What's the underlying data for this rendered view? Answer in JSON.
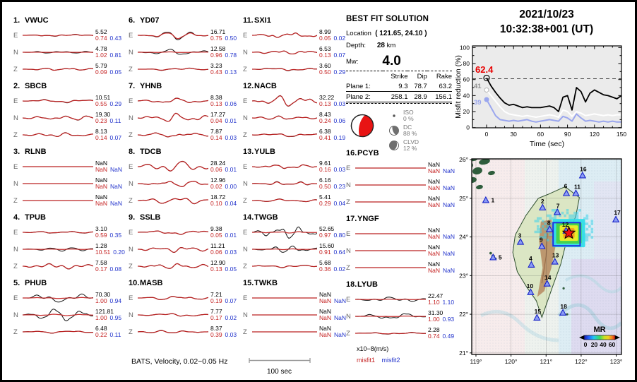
{
  "header": {
    "date": "2021/10/23",
    "time": "10:32:38+001  (UT)"
  },
  "best_fit": {
    "title": "BEST FIT SOLUTION",
    "location_label": "Location",
    "location_value": "( 121.65,  24.10 )",
    "depth_label": "Depth:",
    "depth_value": "28",
    "depth_unit": "km",
    "mw_label": "Mw:",
    "mw_value": "4.0",
    "table": {
      "col1": "Strike",
      "col2": "Dip",
      "col3": "Rake",
      "rows": [
        {
          "label": "Plane 1:",
          "strike": "9.3",
          "dip": "78.7",
          "rake": "63.2"
        },
        {
          "label": "Plane 2:",
          "strike": "258.1",
          "dip": "28.9",
          "rake": "156.1"
        }
      ]
    },
    "decomposition": [
      {
        "name": "ISO",
        "pct": "0 %"
      },
      {
        "name": "DC",
        "pct": "88 %"
      },
      {
        "name": "CLVD",
        "pct": "12 %"
      }
    ]
  },
  "footer": {
    "caption": "BATS, Velocity, 0.02−0.05 Hz",
    "scale_label": "100 sec",
    "units_label": "x10−8(m/s)",
    "misfit1_label": "misfit1",
    "misfit2_label": "misfit2"
  },
  "stations": [
    {
      "num": "1.",
      "name": "VWUC",
      "comps": [
        [
          "E",
          "5.52",
          "0.74",
          "0.43",
          0.15
        ],
        [
          "N",
          "4.78",
          "1.02",
          "0.81",
          0.18
        ],
        [
          "Z",
          "5.79",
          "0.09",
          "0.05",
          0.22
        ]
      ]
    },
    {
      "num": "2.",
      "name": "SBCB",
      "comps": [
        [
          "E",
          "10.51",
          "0.55",
          "0.29",
          0.3
        ],
        [
          "N",
          "19.30",
          "0.23",
          "0.11",
          0.5
        ],
        [
          "Z",
          "8.13",
          "0.14",
          "0.07",
          0.32
        ]
      ]
    },
    {
      "num": "3.",
      "name": "RLNB",
      "comps": [
        [
          "E",
          "NaN",
          "NaN",
          "NaN",
          0
        ],
        [
          "N",
          "NaN",
          "NaN",
          "NaN",
          0
        ],
        [
          "Z",
          "NaN",
          "NaN",
          "NaN",
          0
        ]
      ]
    },
    {
      "num": "4.",
      "name": "TPUB",
      "comps": [
        [
          "E",
          "3.10",
          "0.59",
          "0.35",
          0.2
        ],
        [
          "N",
          "1.28",
          "10.51",
          "0.20",
          0.3
        ],
        [
          "Z",
          "7.58",
          "0.17",
          "0.08",
          0.38
        ]
      ]
    },
    {
      "num": "5.",
      "name": "PHUB",
      "comps": [
        [
          "E",
          "70.30",
          "1.00",
          "0.94",
          0.75
        ],
        [
          "N",
          "121.81",
          "1.00",
          "0.95",
          0.95
        ],
        [
          "Z",
          "6.48",
          "0.22",
          "0.11",
          0.22
        ]
      ]
    },
    {
      "num": "6.",
      "name": "YD07",
      "comps": [
        [
          "E",
          "16.71",
          "0.75",
          "0.50",
          0.6
        ],
        [
          "N",
          "12.58",
          "0.96",
          "0.78",
          0.5
        ],
        [
          "Z",
          "3.23",
          "0.43",
          "0.13",
          0.18
        ]
      ]
    },
    {
      "num": "7.",
      "name": "YHNB",
      "comps": [
        [
          "E",
          "8.38",
          "0.13",
          "0.06",
          0.45
        ],
        [
          "N",
          "17.27",
          "0.04",
          "0.01",
          0.7
        ],
        [
          "Z",
          "7.87",
          "0.14",
          "0.03",
          0.4
        ]
      ]
    },
    {
      "num": "8.",
      "name": "TDCB",
      "comps": [
        [
          "E",
          "28.24",
          "0.06",
          "0.01",
          0.85
        ],
        [
          "N",
          "12.96",
          "0.02",
          "0.00",
          0.45
        ],
        [
          "Z",
          "18.72",
          "0.10",
          "0.04",
          0.6
        ]
      ]
    },
    {
      "num": "9.",
      "name": "SSLB",
      "comps": [
        [
          "E",
          "9.38",
          "0.05",
          "0.01",
          0.35
        ],
        [
          "N",
          "11.21",
          "0.06",
          "0.03",
          0.4
        ],
        [
          "Z",
          "12.90",
          "0.13",
          "0.05",
          0.45
        ]
      ]
    },
    {
      "num": "10.",
      "name": "MASB",
      "comps": [
        [
          "E",
          "7.21",
          "0.19",
          "0.07",
          0.3
        ],
        [
          "N",
          "7.77",
          "0.17",
          "0.02",
          0.25
        ],
        [
          "Z",
          "8.37",
          "0.39",
          "0.03",
          0.3
        ]
      ]
    },
    {
      "num": "11.",
      "name": "SXI1",
      "comps": [
        [
          "E",
          "8.99",
          "0.05",
          "0.02",
          0.4
        ],
        [
          "N",
          "6.53",
          "0.13",
          "0.07",
          0.3
        ],
        [
          "Z",
          "3.60",
          "0.50",
          "0.29",
          0.25
        ]
      ]
    },
    {
      "num": "12.",
      "name": "NACB",
      "comps": [
        [
          "E",
          "32.22",
          "0.13",
          "0.03",
          0.9
        ],
        [
          "N",
          "8.43",
          "0.24",
          "0.06",
          0.35
        ],
        [
          "Z",
          "6.38",
          "0.41",
          "0.19",
          0.3
        ]
      ]
    },
    {
      "num": "13.",
      "name": "YULB",
      "comps": [
        [
          "E",
          "9.61",
          "0.16",
          "0.03",
          0.35
        ],
        [
          "N",
          "6.16",
          "0.50",
          "0.23",
          0.3
        ],
        [
          "Z",
          "5.41",
          "0.29",
          "0.04",
          0.25
        ]
      ]
    },
    {
      "num": "14.",
      "name": "TWGB",
      "comps": [
        [
          "E",
          "52.65",
          "0.97",
          "0.80",
          1.0
        ],
        [
          "N",
          "15.60",
          "0.91",
          "0.64",
          0.55
        ],
        [
          "Z",
          "5.68",
          "0.36",
          "0.02",
          0.2
        ]
      ]
    },
    {
      "num": "15.",
      "name": "TWKB",
      "comps": [
        [
          "E",
          "NaN",
          "NaN",
          "NaN",
          0
        ],
        [
          "N",
          "NaN",
          "NaN",
          "NaN",
          0
        ],
        [
          "Z",
          "NaN",
          "NaN",
          "NaN",
          0
        ]
      ]
    },
    {
      "num": "16.",
      "name": "PCYB",
      "comps": [
        [
          "E",
          "NaN",
          "NaN",
          "NaN",
          0
        ],
        [
          "N",
          "NaN",
          "NaN",
          "NaN",
          0
        ],
        [
          "Z",
          "NaN",
          "NaN",
          "NaN",
          0
        ]
      ]
    },
    {
      "num": "17.",
      "name": "YNGF",
      "comps": [
        [
          "E",
          "NaN",
          "NaN",
          "NaN",
          0
        ],
        [
          "N",
          "NaN",
          "NaN",
          "NaN",
          0
        ],
        [
          "Z",
          "NaN",
          "NaN",
          "NaN",
          0
        ]
      ]
    },
    {
      "num": "18.",
      "name": "LYUB",
      "comps": [
        [
          "E",
          "22.47",
          "1.10",
          "1.10",
          0.35
        ],
        [
          "N",
          "31.30",
          "1.00",
          "0.93",
          0.5
        ],
        [
          "Z",
          "2.28",
          "0.74",
          "0.49",
          0.15
        ]
      ]
    }
  ],
  "chart_data": [
    {
      "type": "line",
      "title": "Misfit reduction vs time",
      "xlabel": "Time (sec)",
      "ylabel": "Misfit reduction (%)",
      "xlim": [
        -16,
        150
      ],
      "ylim": [
        0,
        102
      ],
      "xticks": [
        0,
        30,
        60,
        90,
        120,
        150
      ],
      "yticks": [
        0,
        20,
        40,
        60,
        80,
        100
      ],
      "x": [
        0,
        5,
        10,
        15,
        20,
        25,
        30,
        35,
        40,
        45,
        50,
        55,
        60,
        65,
        70,
        75,
        80,
        85,
        90,
        95,
        100,
        105,
        110,
        115,
        120,
        125,
        130,
        135,
        140,
        145,
        150
      ],
      "series": [
        {
          "name": "total-misfit-reduction",
          "color": "#000000",
          "values": [
            62,
            52,
            44,
            37,
            31,
            28,
            29,
            27,
            25,
            26,
            25,
            25,
            25,
            26,
            27,
            25,
            20,
            38,
            40,
            22,
            50,
            45,
            32,
            43,
            47,
            44,
            41,
            40,
            38,
            36,
            40
          ]
        },
        {
          "name": "misfit1-curve",
          "color": "#ffffff",
          "values": [
            47,
            40,
            33,
            26,
            20,
            17,
            16,
            15,
            14,
            15,
            14,
            13,
            14,
            15,
            16,
            15,
            13,
            22,
            20,
            14,
            20,
            18,
            15,
            16,
            17,
            16,
            15,
            16,
            15,
            16,
            16
          ]
        },
        {
          "name": "misfit2-curve",
          "color": "#9aa6ee",
          "values": [
            35,
            25,
            15,
            10,
            9,
            8,
            9,
            8,
            9,
            10,
            8,
            7,
            8,
            9,
            10,
            9,
            8,
            14,
            12,
            8,
            17,
            12,
            8,
            9,
            8,
            7,
            8,
            7,
            8,
            7,
            7
          ]
        }
      ],
      "dashed_y": 61,
      "annotations": [
        {
          "text": "62.4",
          "color": "#e80000"
        },
        {
          "text": "41",
          "color": "#909090"
        },
        {
          "text": "39",
          "color": "#9aa6ee"
        }
      ],
      "grid": false,
      "background": "#ebebeb"
    },
    {
      "type": "scatter",
      "title": "Station map (Taiwan)",
      "lon_range": [
        118.88,
        123.15
      ],
      "lat_range": [
        20.96,
        26.02
      ],
      "lon_ticks": [
        "119°",
        "120°",
        "121°",
        "122°",
        "123°"
      ],
      "lon_tick_vals": [
        119,
        120,
        121,
        122,
        123
      ],
      "lat_ticks": [
        "21°",
        "22°",
        "23°",
        "24°",
        "25°",
        "26°"
      ],
      "lat_tick_vals": [
        21,
        22,
        23,
        24,
        25,
        26
      ],
      "epicenter": {
        "lon": 121.65,
        "lat": 24.1
      },
      "inversion_box": {
        "lon_min": 121.2,
        "lon_max": 121.97,
        "lat_min": 23.77,
        "lat_max": 24.37
      },
      "colorbar": {
        "label": "MR",
        "ticks": [
          "0",
          "20",
          "40",
          "60"
        ]
      },
      "stations": [
        [
          1,
          119.28,
          24.95,
          10,
          3
        ],
        [
          2,
          120.9,
          24.76,
          0,
          -6
        ],
        [
          3,
          120.27,
          23.87,
          -1,
          -6
        ],
        [
          4,
          120.58,
          23.28,
          -1,
          -6
        ],
        [
          5,
          119.49,
          23.47,
          10,
          3
        ],
        [
          6,
          121.58,
          25.13,
          -1,
          -7
        ],
        [
          7,
          121.32,
          24.64,
          1,
          -6
        ],
        [
          8,
          121.1,
          24.2,
          -1,
          -6
        ],
        [
          9,
          120.88,
          23.76,
          -1,
          -6
        ],
        [
          10,
          120.56,
          22.57,
          -1,
          -6
        ],
        [
          11,
          121.85,
          25.13,
          2,
          -6
        ],
        [
          12,
          121.57,
          24.16,
          -1,
          -6
        ],
        [
          13,
          121.25,
          23.36,
          1,
          -6
        ],
        [
          14,
          121.03,
          22.79,
          1,
          -6
        ],
        [
          15,
          120.74,
          21.91,
          1,
          -6
        ],
        [
          16,
          122.04,
          25.59,
          1,
          -6
        ],
        [
          17,
          122.99,
          24.45,
          2,
          -7
        ],
        [
          18,
          121.48,
          22.04,
          1,
          -6
        ]
      ]
    }
  ]
}
